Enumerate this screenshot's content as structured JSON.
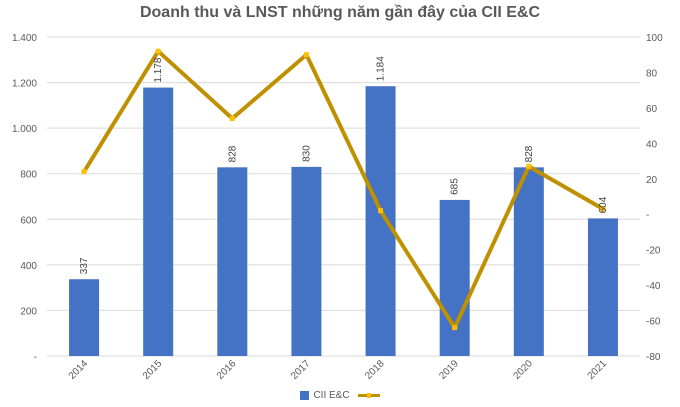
{
  "chart_data": {
    "type": "bar",
    "title": "Doanh thu và LNST những năm gần đây của CII E&C",
    "categories": [
      "2014",
      "2015",
      "2016",
      "2017",
      "2018",
      "2019",
      "2020",
      "2021"
    ],
    "series": [
      {
        "name": "CII E&C",
        "type": "bar",
        "axis": "left",
        "values": [
          337,
          1178,
          828,
          830,
          1184,
          685,
          828,
          604
        ],
        "labels": [
          "337",
          "1.178",
          "828",
          "830",
          "1.184",
          "685",
          "828",
          "604"
        ],
        "color": "#4472C4"
      },
      {
        "name": "",
        "type": "line",
        "axis": "right",
        "values": [
          24,
          92,
          54,
          90,
          2,
          -64,
          27,
          3
        ],
        "color": "#BF9000",
        "marker_color": "#FFC000"
      }
    ],
    "y_left": {
      "lim": [
        0,
        1400
      ],
      "ticks": [
        0,
        200,
        400,
        600,
        800,
        1000,
        1200,
        1400
      ],
      "tick_labels": [
        "-",
        "200",
        "400",
        "600",
        "800",
        "1.000",
        "1.200",
        "1.400"
      ]
    },
    "y_right": {
      "lim": [
        -80,
        100
      ],
      "ticks": [
        -80,
        -60,
        -40,
        -20,
        0,
        20,
        40,
        60,
        80,
        100
      ],
      "tick_labels": [
        "-80",
        "-60",
        "-40",
        "-20",
        "-",
        "20",
        "40",
        "60",
        "80",
        "100"
      ]
    },
    "grid": true,
    "legend_position": "bottom",
    "colors": {
      "gridline": "#D9D9D9",
      "text": "#595959"
    }
  }
}
